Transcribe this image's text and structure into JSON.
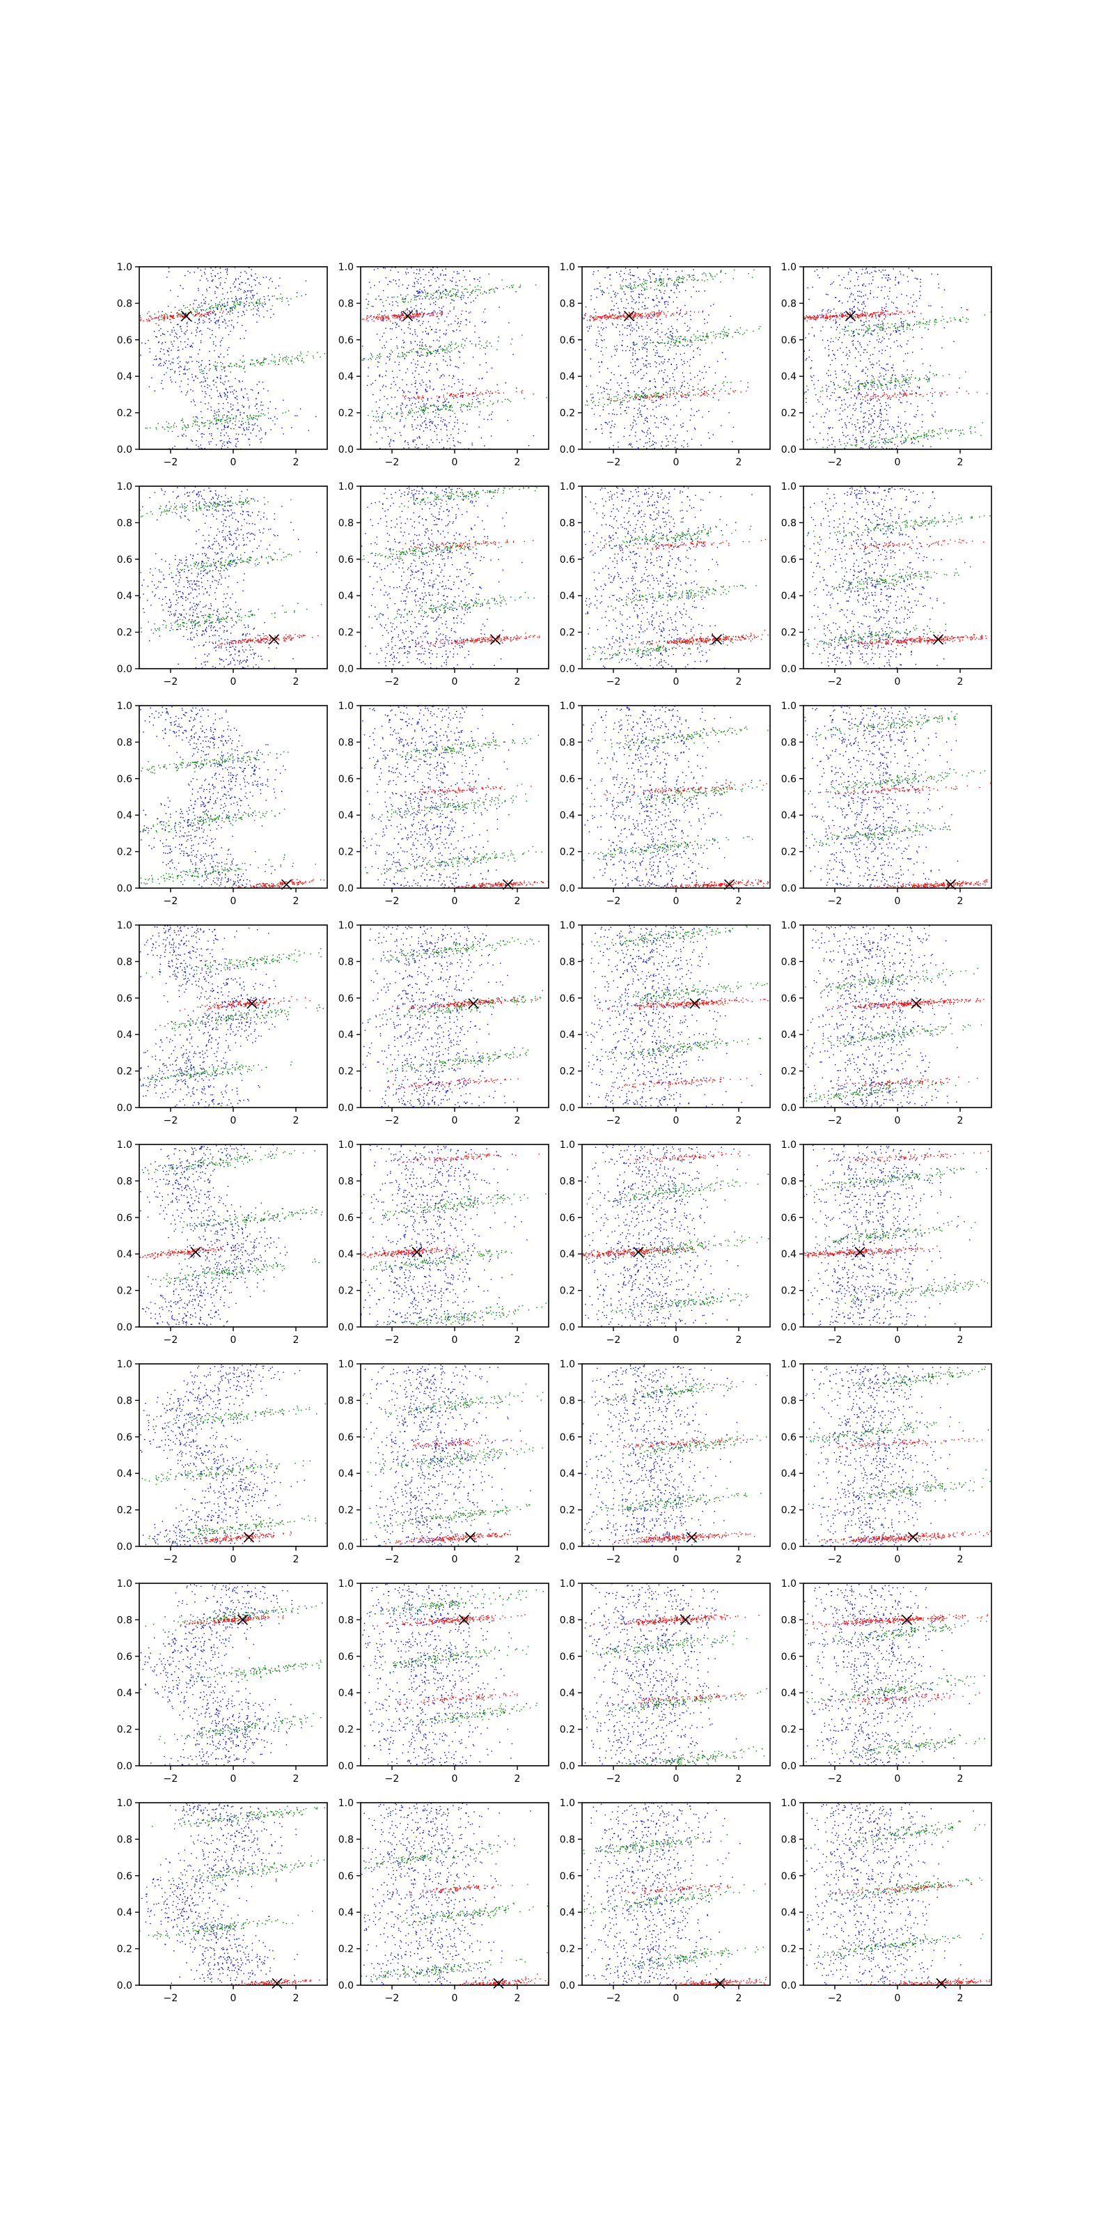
{
  "figure": {
    "rows": 8,
    "cols": 4,
    "x_ticks": [
      "−2",
      "0",
      "2"
    ],
    "y_ticks": [
      "0.0",
      "0.2",
      "0.4",
      "0.6",
      "0.8",
      "1.0"
    ]
  },
  "colors": {
    "blue": "#0000ff",
    "green": "#008000",
    "red": "#ff0000",
    "marker": "#000000"
  },
  "chart_data": {
    "type": "scatter",
    "grid": false,
    "xlim": [
      -3,
      3
    ],
    "ylim": [
      0,
      1
    ],
    "x_tick_values": [
      -2,
      0,
      2
    ],
    "y_tick_values": [
      0,
      0.2,
      0.4,
      0.6,
      0.8,
      1.0
    ],
    "series_colors": [
      "blue",
      "green",
      "red"
    ],
    "marker_symbol": "x",
    "subplot_markers": [
      [
        [
          -1.5,
          0.73
        ],
        [
          -1.5,
          0.73
        ],
        [
          -1.5,
          0.73
        ],
        [
          -1.5,
          0.73
        ]
      ],
      [
        [
          1.3,
          0.16
        ],
        [
          1.3,
          0.16
        ],
        [
          1.3,
          0.16
        ],
        [
          1.3,
          0.16
        ]
      ],
      [
        [
          1.7,
          0.02
        ],
        [
          1.7,
          0.02
        ],
        [
          1.7,
          0.02
        ],
        [
          1.7,
          0.02
        ]
      ],
      [
        [
          0.6,
          0.57
        ],
        [
          0.6,
          0.57
        ],
        [
          0.6,
          0.57
        ],
        [
          0.6,
          0.57
        ]
      ],
      [
        [
          -1.2,
          0.41
        ],
        [
          -1.2,
          0.41
        ],
        [
          -1.2,
          0.41
        ],
        [
          -1.2,
          0.41
        ]
      ],
      [
        [
          0.5,
          0.05
        ],
        [
          0.5,
          0.05
        ],
        [
          0.5,
          0.05
        ],
        [
          0.5,
          0.05
        ]
      ],
      [
        [
          0.3,
          0.8
        ],
        [
          0.3,
          0.8
        ],
        [
          0.3,
          0.8
        ],
        [
          0.3,
          0.8
        ]
      ],
      [
        [
          1.4,
          0.01
        ],
        [
          1.4,
          0.01
        ],
        [
          1.4,
          0.01
        ],
        [
          1.4,
          0.01
        ]
      ]
    ]
  }
}
